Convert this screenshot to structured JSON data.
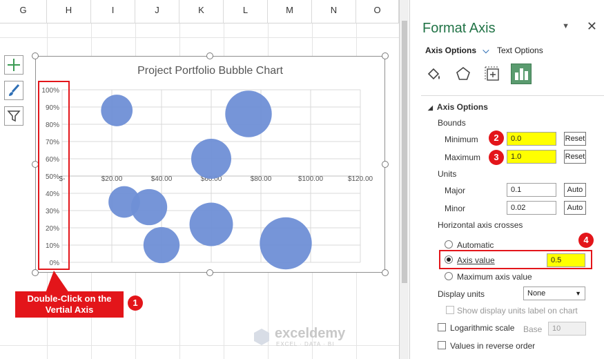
{
  "spreadsheet": {
    "columns": [
      "G",
      "H",
      "I",
      "J",
      "K",
      "L",
      "M",
      "N",
      "O"
    ]
  },
  "chart": {
    "tools": [
      "add-chart-element-icon",
      "chart-styles-icon",
      "chart-filters-icon"
    ]
  },
  "chart_data": {
    "type": "scatter",
    "title": "Project Portfolio Bubble Chart",
    "xlabel": "",
    "ylabel": "",
    "x_ticks": [
      "$-",
      "$20.00",
      "$40.00",
      "$60.00",
      "$80.00",
      "$100.00",
      "$120.00"
    ],
    "y_ticks": [
      "0%",
      "10%",
      "20%",
      "30%",
      "40%",
      "50%",
      "60%",
      "70%",
      "80%",
      "90%",
      "100%"
    ],
    "xlim": [
      0,
      120
    ],
    "ylim": [
      0,
      1
    ],
    "x_axis_crosses_at": 0.5,
    "grid": true,
    "bubble_color": "#6f8fd6",
    "points": [
      {
        "x": 22,
        "y": 0.88,
        "size": 2
      },
      {
        "x": 75,
        "y": 0.86,
        "size": 6
      },
      {
        "x": 60,
        "y": 0.6,
        "size": 4
      },
      {
        "x": 25,
        "y": 0.35,
        "size": 2
      },
      {
        "x": 35,
        "y": 0.32,
        "size": 3
      },
      {
        "x": 60,
        "y": 0.22,
        "size": 5
      },
      {
        "x": 40,
        "y": 0.1,
        "size": 3
      },
      {
        "x": 90,
        "y": 0.11,
        "size": 8
      }
    ]
  },
  "callout": {
    "text": "Double-Click on the Vertial Axis",
    "step1": "1"
  },
  "panel": {
    "title": "Format Axis",
    "tabs": {
      "axis_options": "Axis Options",
      "text_options": "Text Options"
    },
    "section": "Axis Options",
    "bounds_label": "Bounds",
    "minimum_label": "Minimum",
    "minimum_value": "0.0",
    "maximum_label": "Maximum",
    "maximum_value": "1.0",
    "reset": "Reset",
    "units_label": "Units",
    "major_label": "Major",
    "major_value": "0.1",
    "minor_label": "Minor",
    "minor_value": "0.02",
    "auto": "Auto",
    "crosses_label": "Horizontal axis crosses",
    "automatic": "Automatic",
    "axis_value_label": "Axis value",
    "axis_value": "0.5",
    "maximum_axis_value": "Maximum axis value",
    "display_units_label": "Display units",
    "display_units_value": "None",
    "show_units_label": "Show display units label on chart",
    "log_scale_label": "Logarithmic scale",
    "base_label": "Base",
    "base_value": "10",
    "reverse_label": "Values in reverse order",
    "steps": {
      "min": "2",
      "max": "3",
      "axis": "4"
    }
  },
  "watermark": {
    "brand": "exceldemy",
    "tagline": "EXCEL · DATA · BI"
  }
}
